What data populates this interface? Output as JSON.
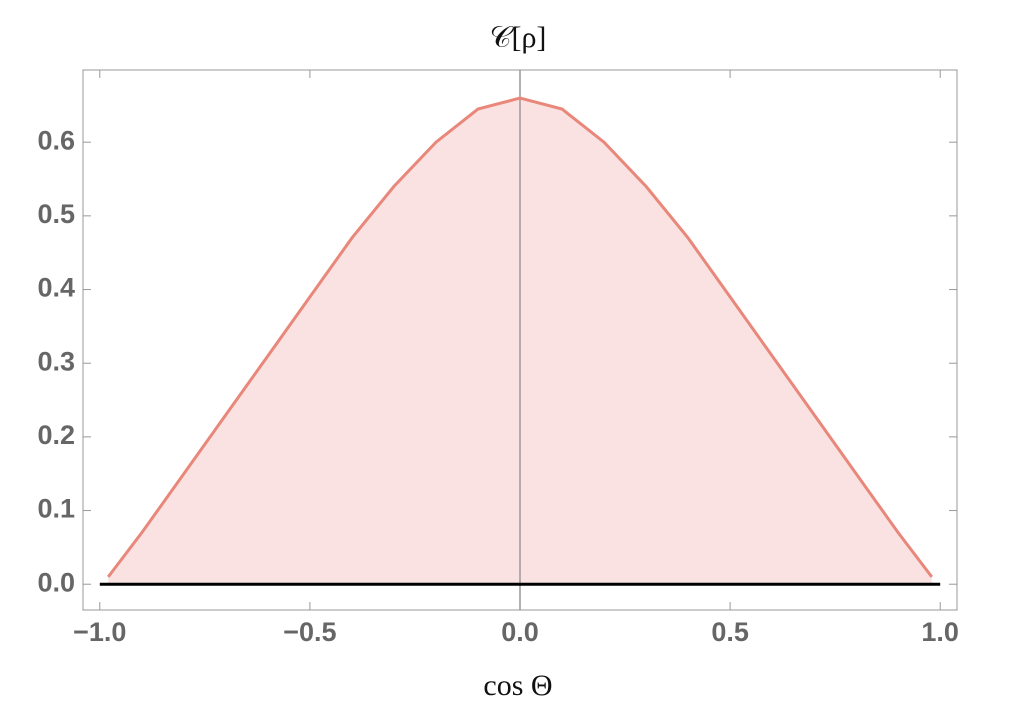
{
  "chart_data": {
    "type": "area",
    "title": "𝒞[ρ]",
    "xlabel": "cos Θ",
    "x": [
      -0.98,
      -0.9,
      -0.8,
      -0.7,
      -0.6,
      -0.5,
      -0.4,
      -0.3,
      -0.2,
      -0.1,
      0,
      0.1,
      0.2,
      0.3,
      0.4,
      0.5,
      0.6,
      0.7,
      0.8,
      0.9,
      0.98
    ],
    "series": [
      {
        "color": "#e8877a",
        "fill": "#f9e2e1",
        "values": [
          0.01,
          0.07,
          0.15,
          0.23,
          0.31,
          0.39,
          0.47,
          0.54,
          0.6,
          0.645,
          0.66,
          0.645,
          0.6,
          0.54,
          0.47,
          0.39,
          0.31,
          0.23,
          0.15,
          0.07,
          0.01
        ]
      }
    ],
    "xlim": [
      -1.04,
      1.04
    ],
    "ylim": [
      -0.035,
      0.698
    ],
    "xticks": [
      {
        "value": -1,
        "label": "−1.0"
      },
      {
        "value": -0.5,
        "label": "−0.5"
      },
      {
        "value": 0,
        "label": "0.0"
      },
      {
        "value": 0.5,
        "label": "0.5"
      },
      {
        "value": 1,
        "label": "1.0"
      }
    ],
    "yticks": [
      {
        "value": 0,
        "label": "0.0"
      },
      0.1,
      0.2,
      0.3,
      0.4,
      0.5,
      0.6
    ]
  }
}
